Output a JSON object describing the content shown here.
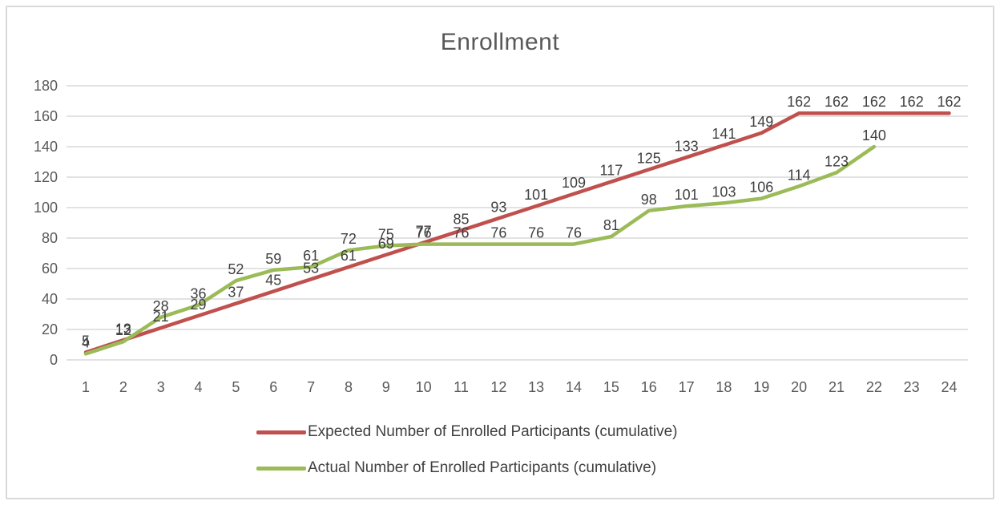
{
  "chart_data": {
    "type": "line",
    "title": "Enrollment",
    "x": [
      1,
      2,
      3,
      4,
      5,
      6,
      7,
      8,
      9,
      10,
      11,
      12,
      13,
      14,
      15,
      16,
      17,
      18,
      19,
      20,
      21,
      22,
      23,
      24
    ],
    "series": [
      {
        "name": "Expected Number of Enrolled Participants (cumulative)",
        "color": "#C0504D",
        "values": [
          5,
          13,
          21,
          29,
          37,
          45,
          53,
          61,
          69,
          77,
          85,
          93,
          101,
          109,
          117,
          125,
          133,
          141,
          149,
          162,
          162,
          162,
          162,
          162
        ]
      },
      {
        "name": "Actual Number of Enrolled Participants (cumulative)",
        "color": "#9BBB59",
        "values": [
          4,
          12,
          28,
          36,
          52,
          59,
          61,
          72,
          75,
          76,
          76,
          76,
          76,
          76,
          81,
          98,
          101,
          103,
          106,
          114,
          123,
          140
        ]
      }
    ],
    "ylim": [
      0,
      180
    ],
    "yticks": [
      0,
      20,
      40,
      60,
      80,
      100,
      120,
      140,
      160,
      180
    ],
    "grid": "horizontal",
    "legend_position": "bottom",
    "data_labels": true
  },
  "style": {
    "grid_color": "#d9d9d9",
    "axis_label_color": "#595959",
    "data_label_color": "#404040",
    "title_color": "#595959"
  }
}
